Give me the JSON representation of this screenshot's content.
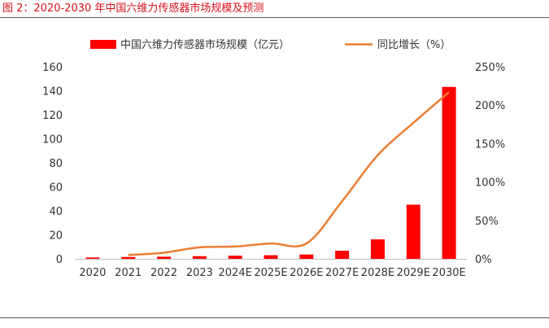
{
  "figure_title": "图 2：2020-2030 年中国六维力传感器市场规模及预测",
  "chart_data": {
    "type": "bar+line",
    "categories": [
      "2020",
      "2021",
      "2022",
      "2023",
      "2024E",
      "2025E",
      "2026E",
      "2027E",
      "2028E",
      "2029E",
      "2030E"
    ],
    "series": [
      {
        "name": "中国六维力传感器市场规模（亿元）",
        "type": "bar",
        "axis": "left",
        "color": "#ff0000",
        "values": [
          1.1,
          1.5,
          1.8,
          2.2,
          2.6,
          3.0,
          3.6,
          6.7,
          16.2,
          45.1,
          143.2
        ]
      },
      {
        "name": "同比增长（%）",
        "type": "line",
        "axis": "right",
        "color": "#ed7d31",
        "values": [
          null,
          5,
          8,
          15,
          16,
          20,
          20,
          75,
          135,
          177,
          217
        ]
      }
    ],
    "y_left": {
      "min": 0,
      "max": 160,
      "ticks": [
        0,
        20,
        40,
        60,
        80,
        100,
        120,
        140,
        160
      ]
    },
    "y_right": {
      "min": 0,
      "max": 250,
      "ticks": [
        "0%",
        "50%",
        "100%",
        "150%",
        "200%",
        "250%"
      ]
    },
    "legend_position": "top",
    "grid": false
  }
}
